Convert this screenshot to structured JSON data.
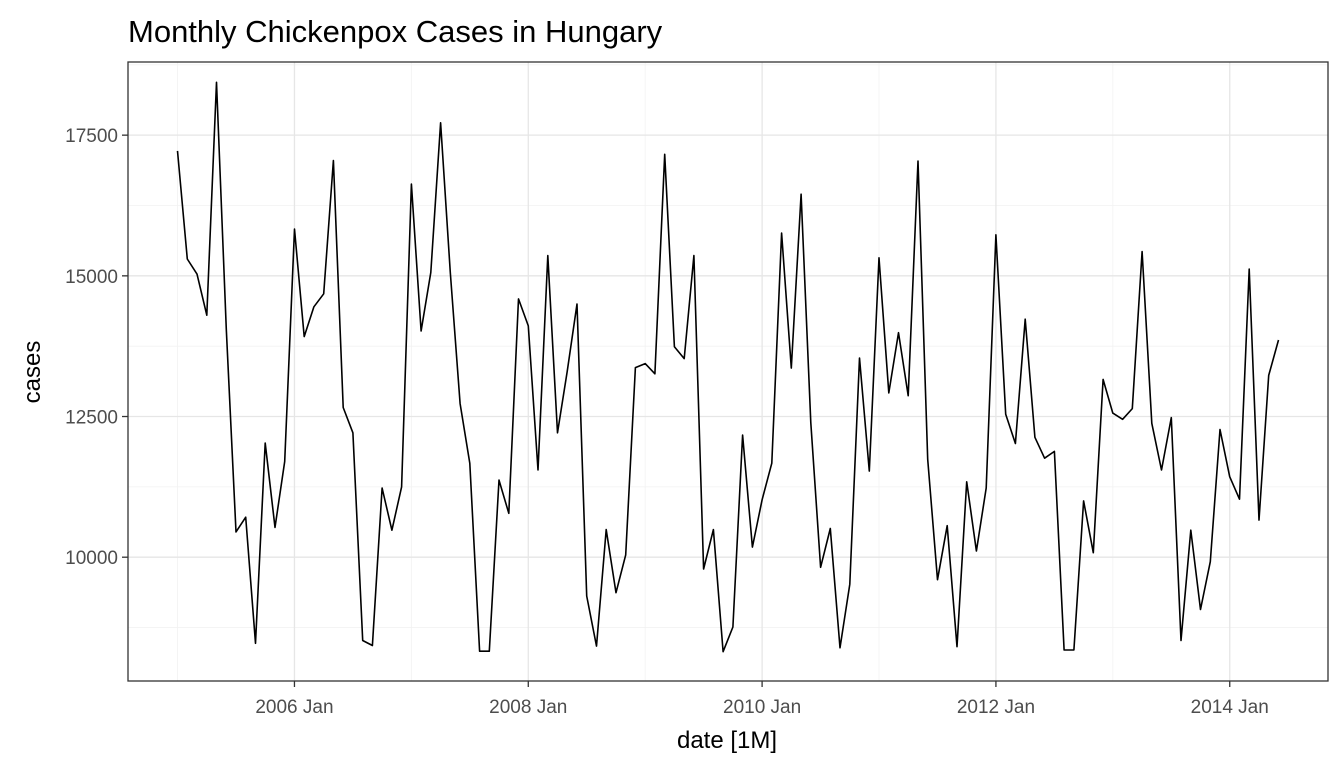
{
  "chart_data": {
    "type": "line",
    "title": "Monthly Chickenpox Cases in Hungary",
    "xlabel": "date [1M]",
    "ylabel": "cases",
    "x_start": "2005 Jan",
    "x_end": "2014 Jun",
    "x_ticks": [
      {
        "date": "2006-01",
        "label": "2006 Jan"
      },
      {
        "date": "2008-01",
        "label": "2008 Jan"
      },
      {
        "date": "2010-01",
        "label": "2010 Jan"
      },
      {
        "date": "2012-01",
        "label": "2012 Jan"
      },
      {
        "date": "2014-01",
        "label": "2014 Jan"
      }
    ],
    "y_ticks": [
      10000,
      12500,
      15000,
      17500
    ],
    "ylim": [
      7800,
      18800
    ],
    "grid": true,
    "series": [
      {
        "start": "2005-01",
        "values": [
          17220,
          15300,
          15030,
          14300,
          18440,
          14050,
          10450,
          10710,
          8470,
          12030,
          10530,
          11700,
          15830,
          13920,
          14450,
          14680,
          17050,
          12660,
          12210,
          8520,
          8430,
          11230,
          10480,
          11250,
          16630,
          14020,
          15060,
          17720,
          15060,
          12730,
          11670,
          8330,
          8330,
          11370,
          10780,
          14590,
          14110,
          11550,
          15360,
          12210,
          13300,
          14500,
          9310,
          8420,
          10490,
          9370,
          10040,
          13370,
          13440,
          13260,
          17160,
          13740,
          13530,
          15360,
          9790,
          10490,
          8320,
          8760,
          12170,
          10180,
          11020,
          11670,
          15760,
          13360,
          16450,
          12390,
          9820,
          10510,
          8390,
          9520,
          13540,
          11530,
          15320,
          12920,
          13990,
          12870,
          17040,
          11740,
          9600,
          10560,
          8410,
          11340,
          10110,
          11230,
          15730,
          12540,
          12020,
          14230,
          12130,
          11760,
          11880,
          8350,
          8350,
          11000,
          10080,
          13160,
          12560,
          12450,
          12640,
          15430,
          12380,
          11550,
          12480,
          8520,
          10480,
          9070,
          9920,
          12270,
          11430,
          11030,
          15120,
          10660,
          13230,
          13860
        ]
      }
    ]
  }
}
